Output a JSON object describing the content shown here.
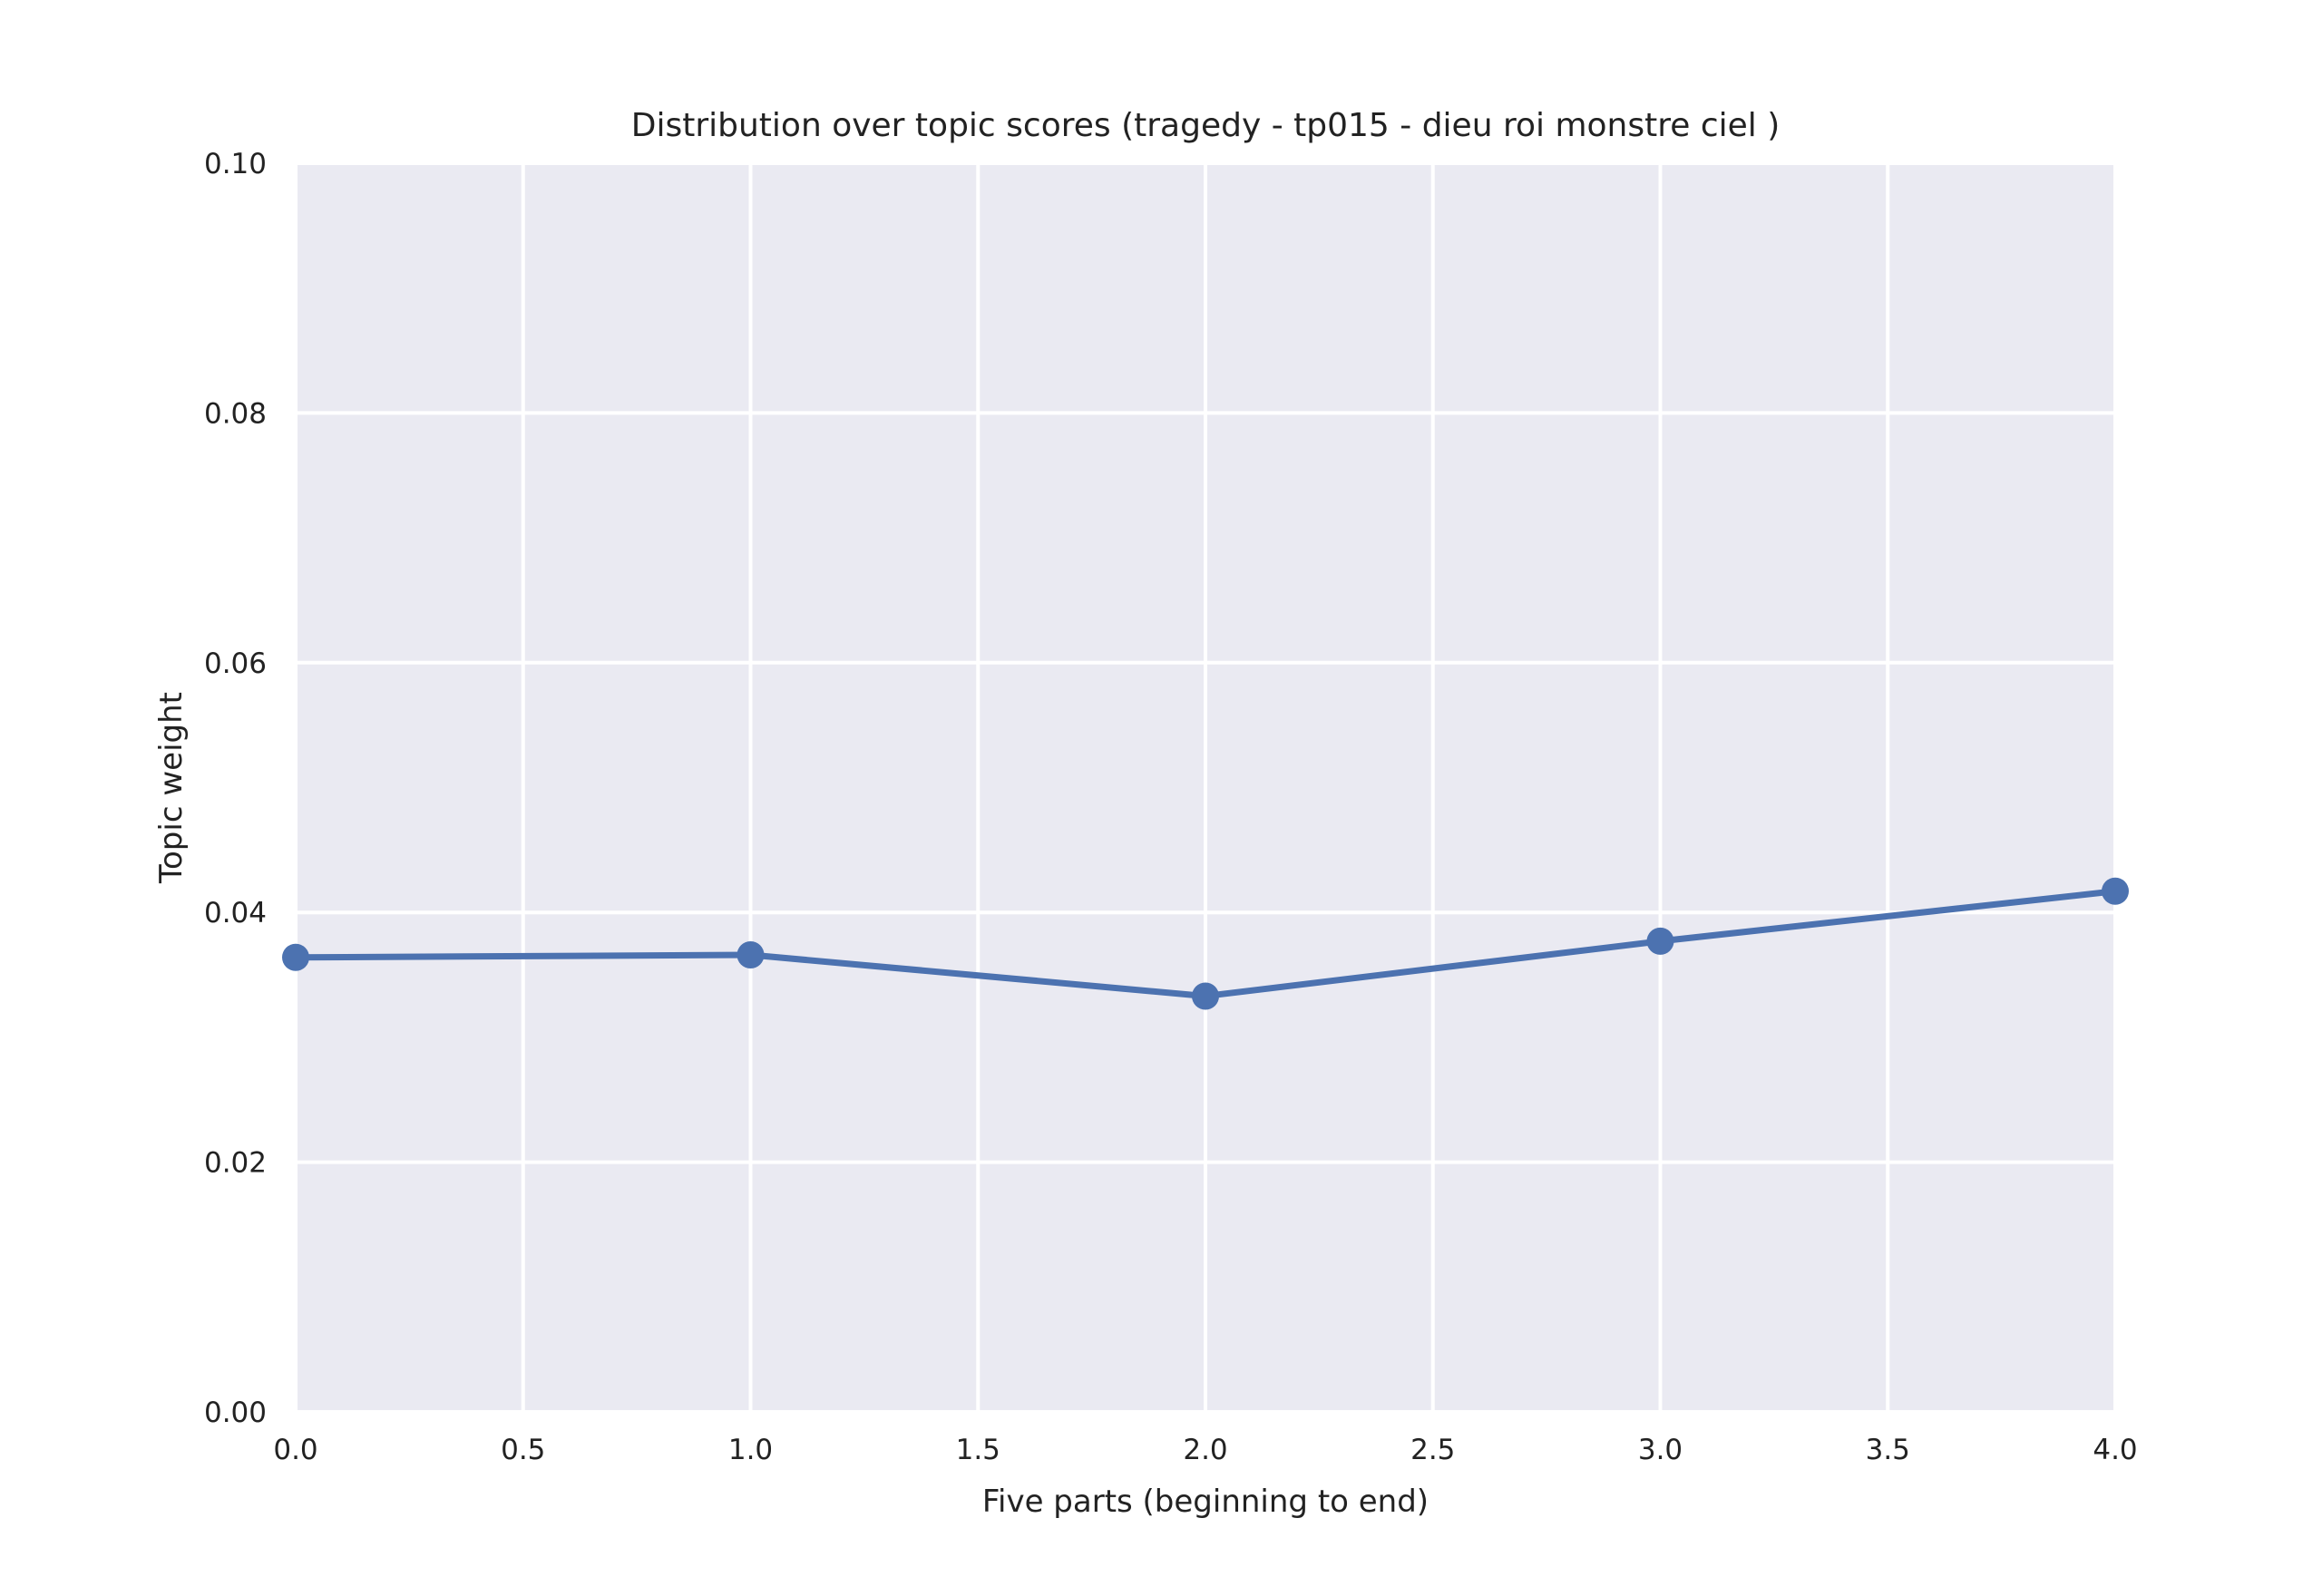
{
  "chart_data": {
    "type": "line",
    "title": "Distribution over topic scores (tragedy - tp015 - dieu roi monstre ciel )",
    "xlabel": "Five parts (beginning to end)",
    "ylabel": "Topic weight",
    "xlim": [
      0.0,
      4.0
    ],
    "ylim": [
      0.0,
      0.1
    ],
    "x_ticks": [
      "0.0",
      "0.5",
      "1.0",
      "1.5",
      "2.0",
      "2.5",
      "3.0",
      "3.5",
      "4.0"
    ],
    "y_ticks": [
      "0.00",
      "0.02",
      "0.04",
      "0.06",
      "0.08",
      "0.10"
    ],
    "grid": true,
    "legend": "none",
    "series": [
      {
        "x": [
          0,
          1,
          2,
          3,
          4
        ],
        "values": [
          0.0364,
          0.0366,
          0.0333,
          0.0377,
          0.0417
        ]
      }
    ],
    "colors": {
      "background": "#eaeaf2",
      "line": "#4c72b0",
      "grid": "#ffffff"
    }
  }
}
